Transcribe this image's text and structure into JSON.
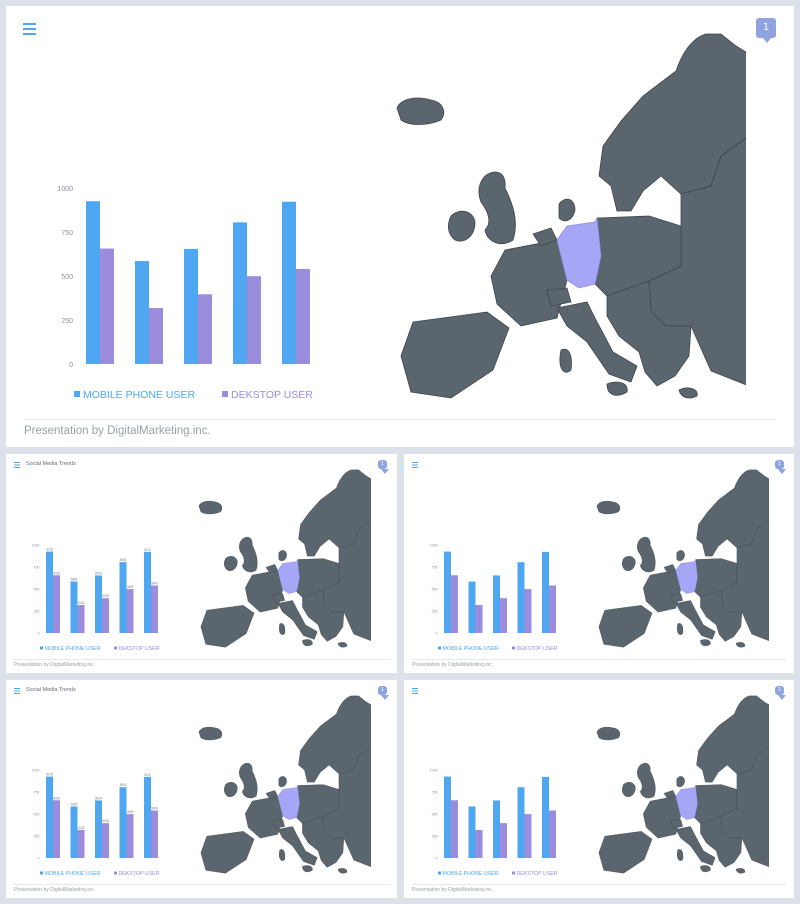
{
  "slides": {
    "large": {
      "badge": "1",
      "footer": "Presentation by DigitalMarketing.inc."
    },
    "s1": {
      "title": "Social Media Trends",
      "badge": "1",
      "footer": "Presentation by DigitalMarketing.inc."
    },
    "s2": {
      "badge": "1",
      "footer": "Presentation by DigitalMarketing.inc."
    },
    "s3": {
      "title": "Social Media Trends",
      "badge": "1",
      "footer": "Presentation by DigitalMarketing.inc."
    },
    "s4": {
      "badge": "1",
      "footer": "Presentation by DigitalMarketing.inc."
    }
  },
  "icons": {
    "menu": "menu-icon",
    "comment": "comment-icon"
  },
  "colors": {
    "mobile": "#4fa7f1",
    "desktop": "#9b8cde",
    "map": "#5a656e",
    "highlight": "#a7a6f6"
  },
  "chart_data": {
    "type": "bar",
    "categories": [
      "",
      "",
      "",
      "",
      ""
    ],
    "series": [
      {
        "name": "MOBILE PHONE USER",
        "values": [
          925,
          585,
          654,
          805,
          922
        ]
      },
      {
        "name": "DEKSTOP USER",
        "values": [
          656,
          318,
          396,
          499,
          540
        ]
      }
    ],
    "ylim": [
      0,
      1000
    ],
    "yticks": [
      "0",
      "250",
      "500",
      "750",
      "1000"
    ],
    "legend": "bottom",
    "small_value_labels": {
      "mobile": [
        "925",
        "585",
        "654",
        "805",
        "922"
      ],
      "desktop": [
        "656",
        "318",
        "396",
        "499",
        "540"
      ]
    }
  }
}
